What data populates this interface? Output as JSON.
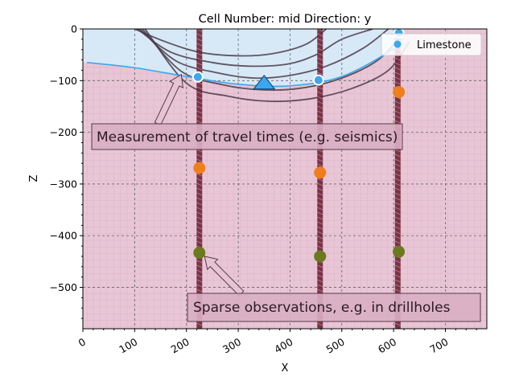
{
  "chart_data": {
    "type": "scatter",
    "title": "Cell Number: mid Direction: y",
    "xlabel": "X",
    "ylabel": "Z",
    "xlim": [
      0,
      780
    ],
    "ylim": [
      -580,
      0
    ],
    "x_ticks": [
      0,
      100,
      200,
      300,
      400,
      500,
      600,
      700
    ],
    "y_ticks": [
      0,
      -100,
      -200,
      -300,
      -400,
      -500
    ],
    "x_tick_labels": [
      "0",
      "100",
      "200",
      "300",
      "400",
      "500",
      "600",
      "700"
    ],
    "y_tick_labels": [
      "0",
      "−100",
      "−200",
      "−300",
      "−400",
      "−500"
    ],
    "grid": true,
    "legend": {
      "position": "top-right",
      "entries": [
        {
          "label": "Limestone",
          "color": "#3aa7ee"
        }
      ]
    },
    "colors": {
      "limestone_fill": "#d6eaf8",
      "basement_fill": "#e9c6d6",
      "boundary_line": "#3aa7ee",
      "layer_lines": "#4a3a48",
      "orange_points": "#ee7f1c",
      "olive_points": "#6b7a1e",
      "drillhole": "#6e2436"
    },
    "surface_boundary": {
      "x": [
        8,
        100,
        200,
        300,
        400,
        500,
        600,
        620
      ],
      "z": [
        -65,
        -75,
        -92,
        -107,
        -110,
        -92,
        -38,
        -8
      ]
    },
    "layer_curves": [
      {
        "x": [
          100,
          160,
          225,
          300,
          365,
          430,
          470
        ],
        "z": [
          0,
          -25,
          -45,
          -52,
          -48,
          -30,
          0
        ]
      },
      {
        "x": [
          105,
          170,
          250,
          320,
          395,
          450,
          500,
          560
        ],
        "z": [
          0,
          -45,
          -65,
          -72,
          -68,
          -50,
          -20,
          0
        ]
      },
      {
        "x": [
          110,
          180,
          260,
          330,
          400,
          470,
          540,
          590
        ],
        "z": [
          0,
          -62,
          -85,
          -95,
          -90,
          -72,
          -38,
          0
        ]
      },
      {
        "x": [
          115,
          190,
          270,
          350,
          425,
          500,
          570,
          620
        ],
        "z": [
          0,
          -82,
          -108,
          -118,
          -114,
          -95,
          -60,
          -8
        ]
      },
      {
        "x": [
          120,
          200,
          280,
          360,
          440,
          520,
          590,
          630
        ],
        "z": [
          0,
          -105,
          -130,
          -140,
          -135,
          -115,
          -80,
          -25
        ]
      }
    ],
    "drillholes": [
      {
        "x": 225
      },
      {
        "x": 458
      },
      {
        "x": 608
      }
    ],
    "series": [
      {
        "name": "Limestone",
        "marker": "circle",
        "color": "#3aa7ee",
        "x": [
          222,
          455,
          610
        ],
        "z": [
          -93,
          -99,
          -8
        ]
      },
      {
        "marker": "circle",
        "color": "#ee7f1c",
        "x": [
          225,
          458,
          610
        ],
        "z": [
          -269,
          -278,
          -122
        ]
      },
      {
        "marker": "circle",
        "color": "#6b7a1e",
        "x": [
          225,
          458,
          610
        ],
        "z": [
          -433,
          -440,
          -431
        ]
      }
    ],
    "seismic_source": {
      "marker": "triangle",
      "color": "#3aa7ee",
      "x": 350,
      "z": -107
    },
    "annotations": [
      {
        "text": "Measurement of travel times (e.g. seismics)",
        "arrow_to_x": 190,
        "arrow_to_z": -88
      },
      {
        "text": "Sparse observations, e.g. in drillholes",
        "arrow_to_x": 235,
        "arrow_to_z": -440
      }
    ]
  }
}
